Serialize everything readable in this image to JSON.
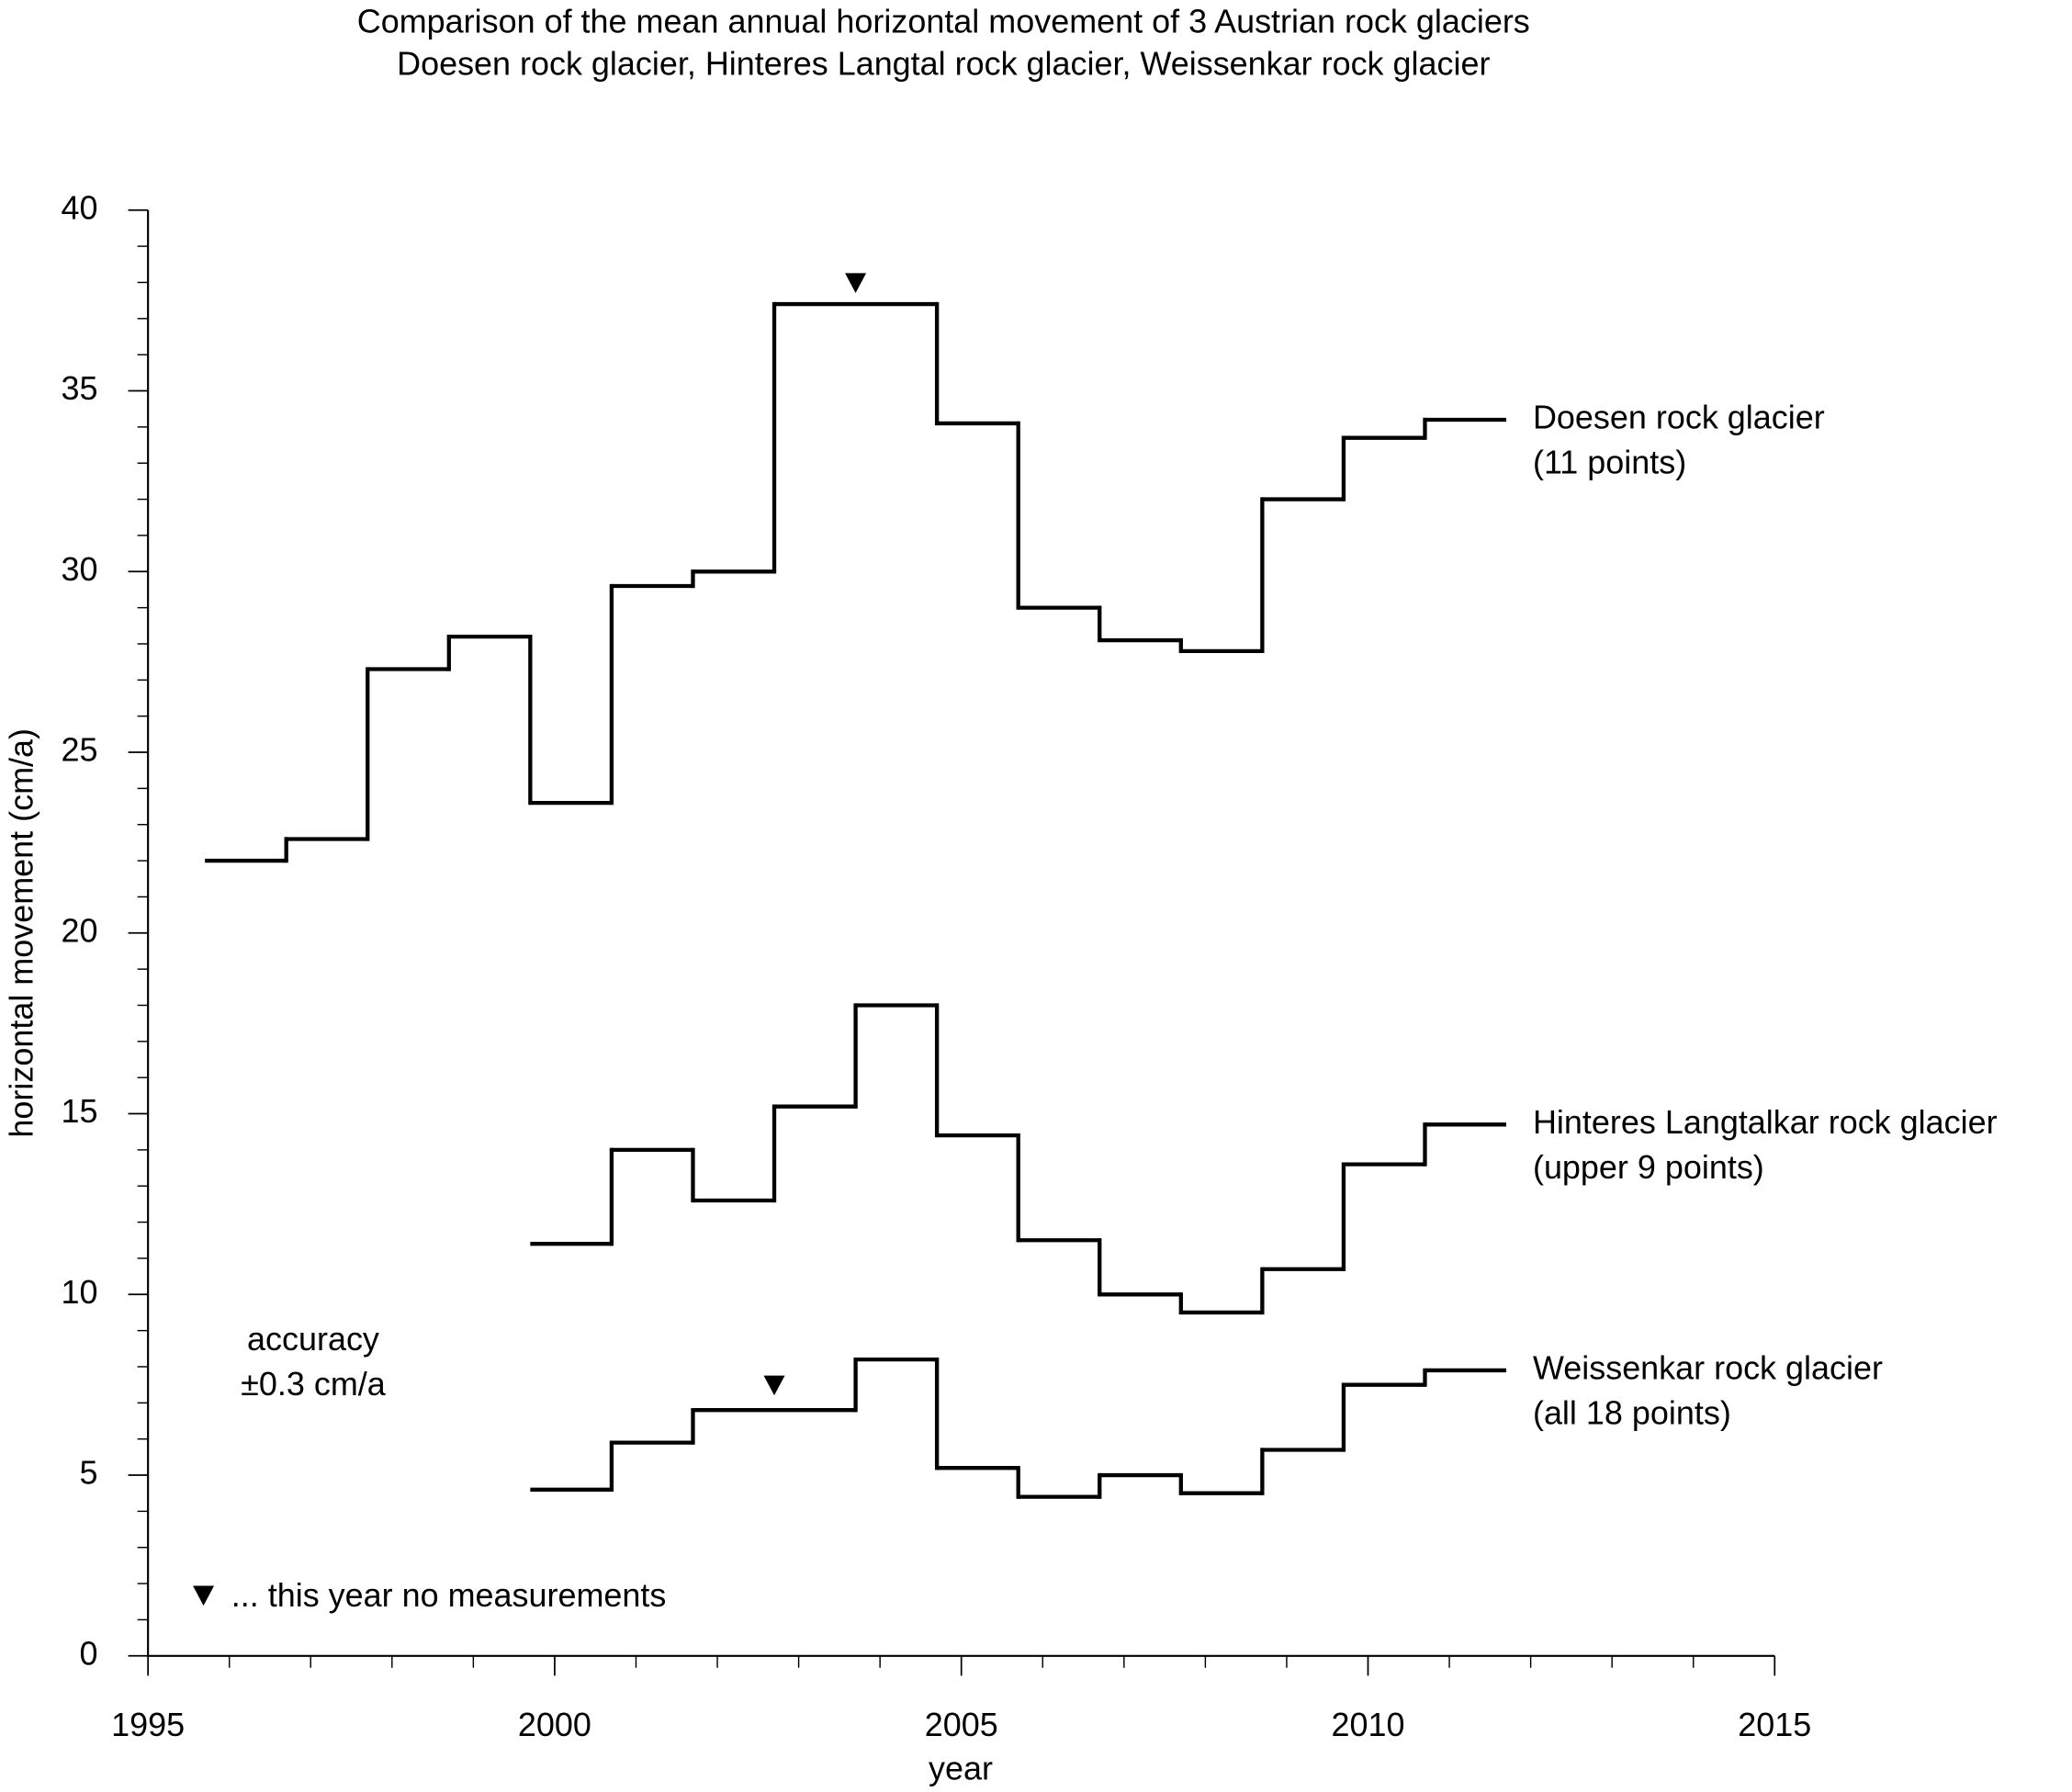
{
  "chart_data": {
    "type": "step",
    "title": "Comparison of the mean annual horizontal movement of 3 Austrian rock glaciers",
    "subtitle": "Doesen rock glacier, Hinteres Langtal rock glacier, Weissenkar rock glacier",
    "xlabel": "year",
    "ylabel": "horizontal movement (cm/a)",
    "xlim": [
      1995,
      2015
    ],
    "ylim": [
      0,
      40
    ],
    "xticks": [
      1995,
      2000,
      2005,
      2010,
      2015
    ],
    "yticks": [
      0,
      5,
      10,
      15,
      20,
      25,
      30,
      35,
      40
    ],
    "xticks_minor": [
      1996,
      1997,
      1998,
      1999,
      2001,
      2002,
      2003,
      2004,
      2006,
      2007,
      2008,
      2009,
      2011,
      2012,
      2013,
      2014
    ],
    "yticks_minor": [
      1,
      2,
      3,
      4,
      6,
      7,
      8,
      9,
      11,
      12,
      13,
      14,
      16,
      17,
      18,
      19,
      21,
      22,
      23,
      24,
      26,
      27,
      28,
      29,
      31,
      32,
      33,
      34,
      36,
      37,
      38,
      39
    ],
    "color": "#000000",
    "series": [
      {
        "name": "Doesen rock glacier",
        "note": "(11 points)",
        "bins": [
          1995.7,
          1996.7,
          1997.7,
          1998.7,
          1999.7,
          2000.7,
          2001.7,
          2002.7,
          2004.7,
          2005.7,
          2006.7,
          2007.7,
          2008.7,
          2009.7,
          2010.7,
          2011.7
        ],
        "values": [
          22.0,
          22.6,
          27.3,
          28.2,
          23.6,
          29.6,
          30.0,
          37.4,
          34.1,
          29.0,
          28.1,
          27.8,
          32.0,
          33.7,
          34.2
        ]
      },
      {
        "name": "Hinteres Langtalkar rock glacier",
        "note": "(upper 9 points)",
        "bins": [
          1999.7,
          2000.7,
          2001.7,
          2002.7,
          2003.7,
          2004.7,
          2005.7,
          2006.7,
          2007.7,
          2008.7,
          2009.7,
          2010.7,
          2011.7
        ],
        "values": [
          11.4,
          14.0,
          12.6,
          15.2,
          18.0,
          14.4,
          11.5,
          10.0,
          9.5,
          10.7,
          13.6,
          14.7
        ]
      },
      {
        "name": "Weissenkar rock glacier",
        "note": "(all 18 points)",
        "bins": [
          1999.7,
          2000.7,
          2001.7,
          2003.7,
          2004.7,
          2005.7,
          2006.7,
          2007.7,
          2008.7,
          2009.7,
          2010.7,
          2011.7
        ],
        "values": [
          4.6,
          5.9,
          6.8,
          8.2,
          5.2,
          4.4,
          5.0,
          4.5,
          5.7,
          7.5,
          7.9
        ]
      }
    ],
    "no_measurement_markers": {
      "x": [
        2003.7,
        2002.7
      ],
      "y": [
        38.0,
        7.5
      ]
    },
    "marker_legend": "... this year no measurements",
    "annotation": [
      "accuracy",
      "±0.3 cm/a"
    ]
  }
}
